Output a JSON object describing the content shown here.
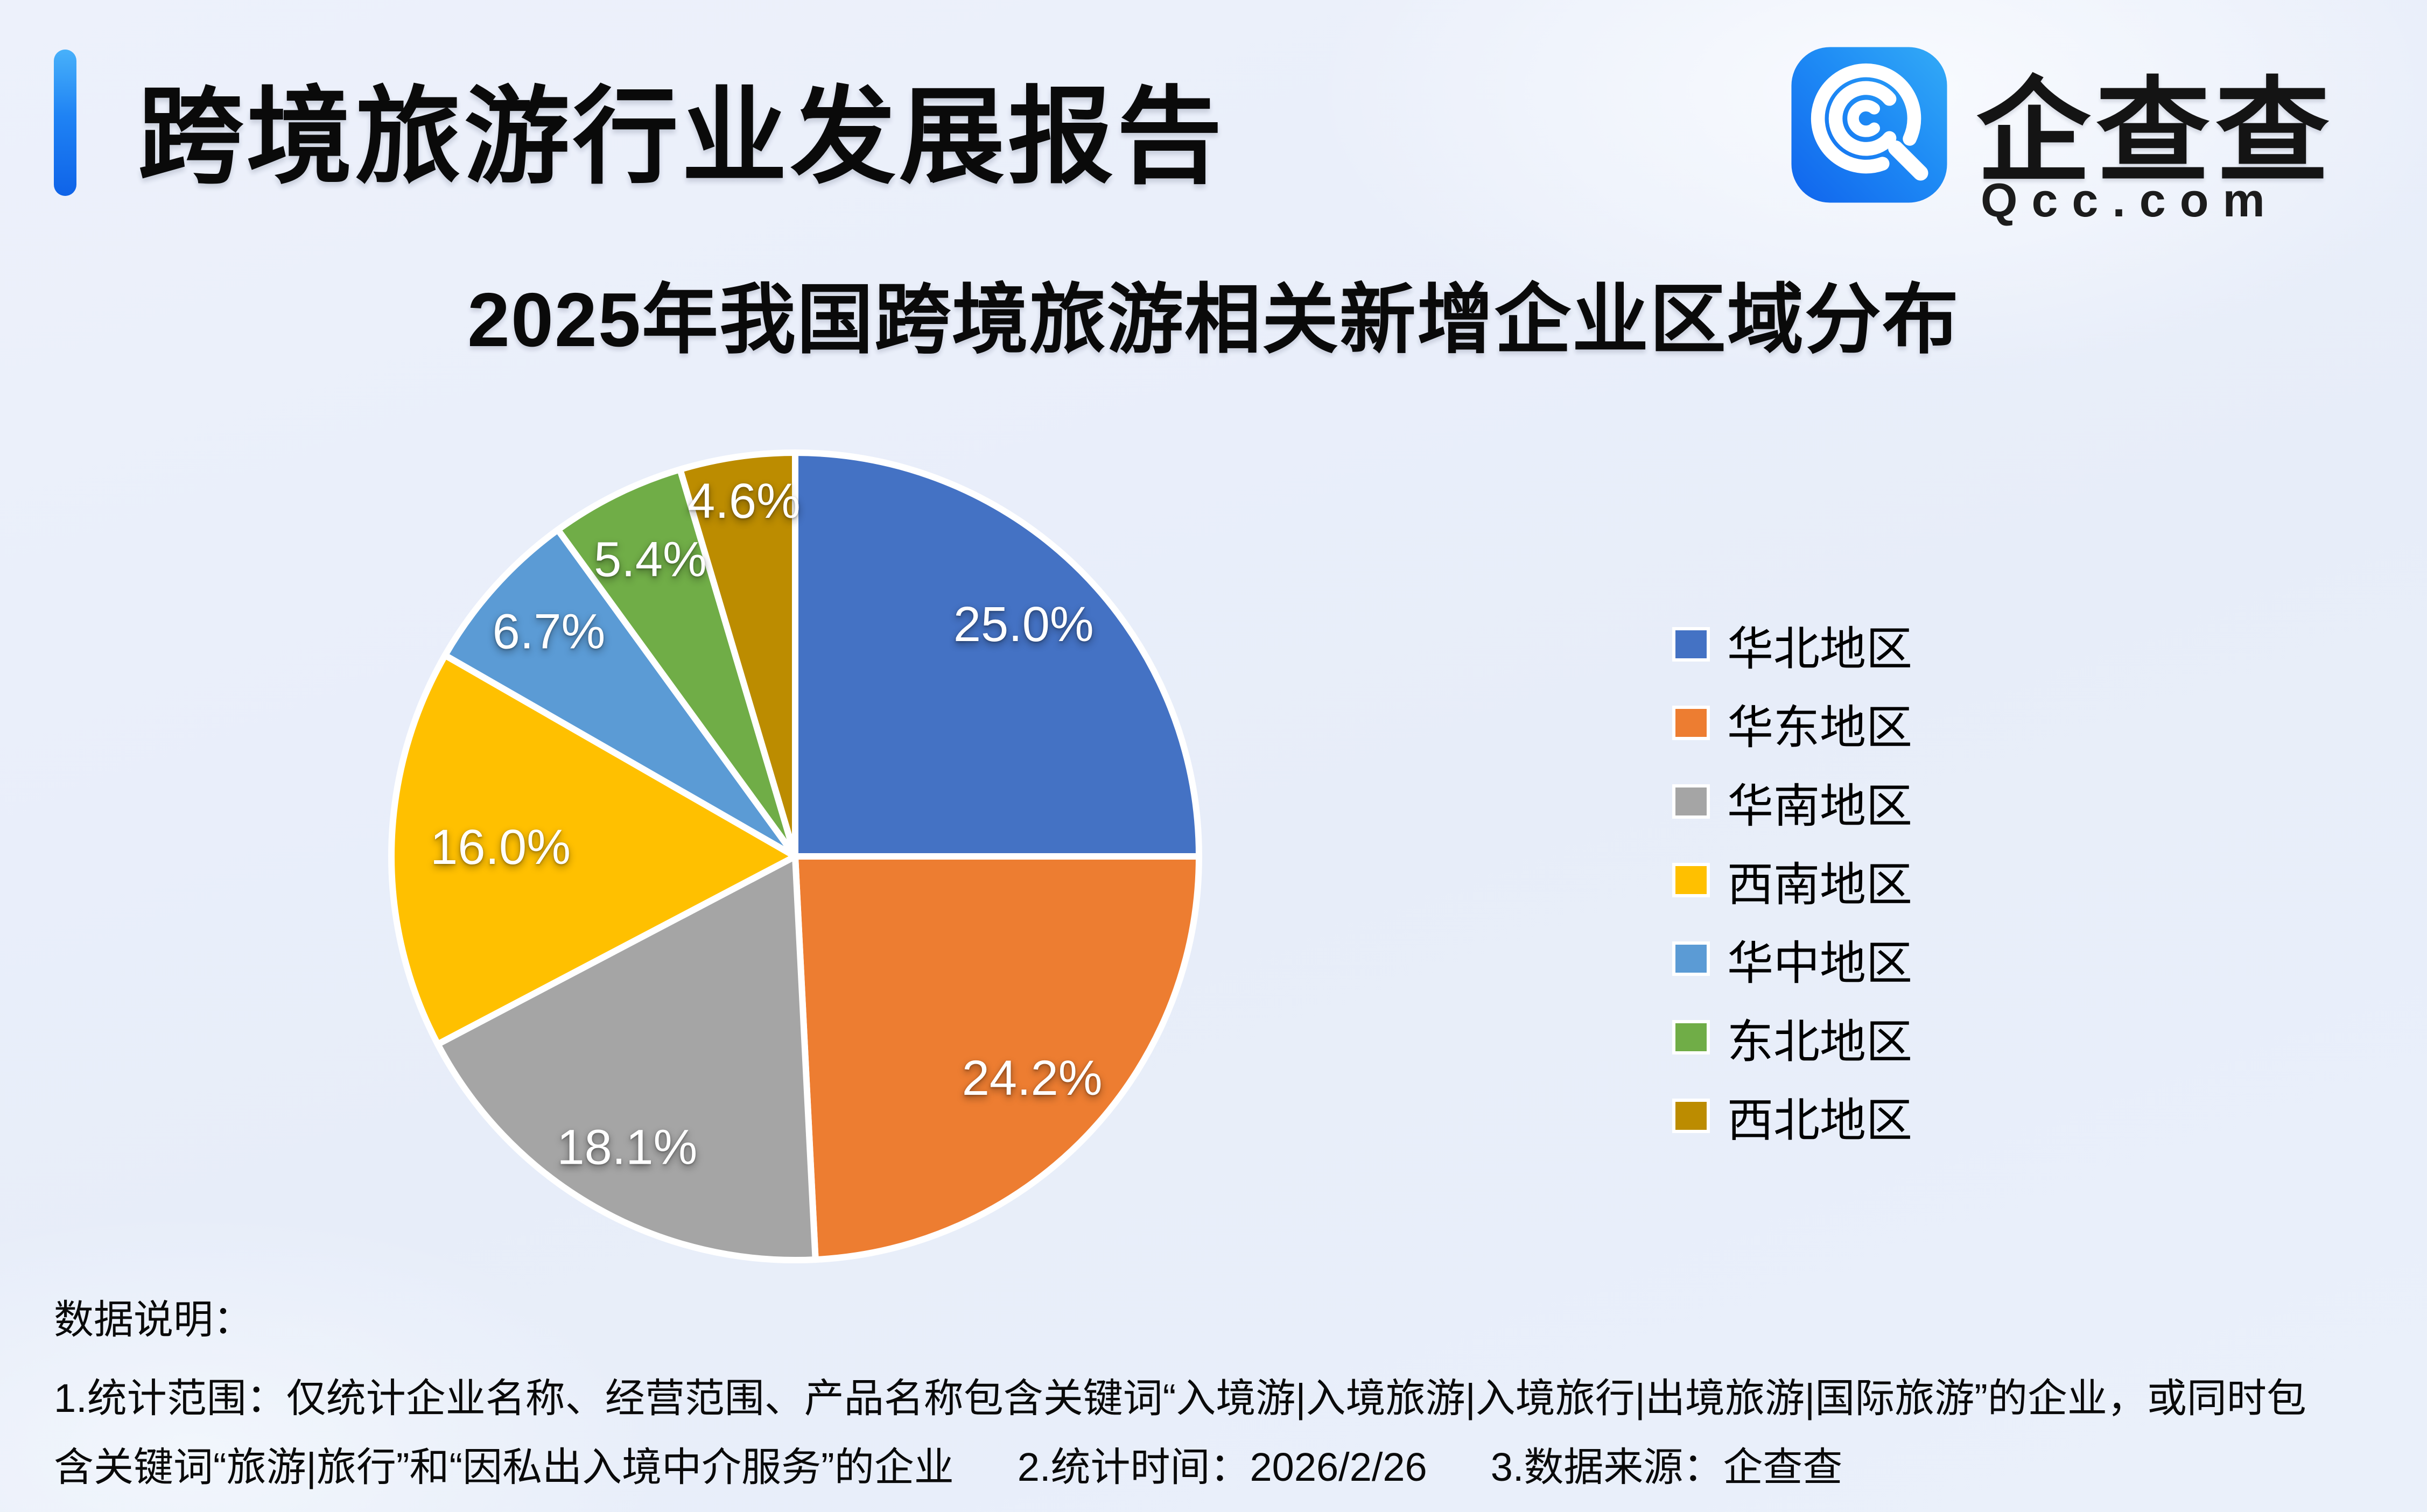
{
  "header": {
    "title": "跨境旅游行业发展报告"
  },
  "logo": {
    "name": "企查查",
    "domain": "Qcc.com"
  },
  "chart_data": {
    "type": "pie",
    "title": "2025年我国跨境旅游相关新增企业区域分布",
    "series": [
      {
        "label": "华北地区",
        "value": 25.0,
        "color": "#4472C4"
      },
      {
        "label": "华东地区",
        "value": 24.2,
        "color": "#ED7D31"
      },
      {
        "label": "华南地区",
        "value": 18.1,
        "color": "#A5A5A5"
      },
      {
        "label": "西南地区",
        "value": 16.0,
        "color": "#FFC000"
      },
      {
        "label": "华中地区",
        "value": 6.7,
        "color": "#5B9BD5"
      },
      {
        "label": "东北地区",
        "value": 5.4,
        "color": "#70AD47"
      },
      {
        "label": "西北地区",
        "value": 4.6,
        "color": "#BC8C00"
      }
    ],
    "label_format": "percent_one_decimal",
    "start_angle_deg": 0,
    "direction": "clockwise",
    "legend_position": "right",
    "label_radius_fraction": [
      0.8,
      0.81,
      0.84,
      0.73,
      0.82,
      0.81,
      0.88
    ],
    "separator_color": "#FFFFFF"
  },
  "notes": {
    "heading": "数据说明：",
    "line1": "1.统计范围：仅统计企业名称、经营范围、产品名称包含关键词“入境游|入境旅游|入境旅行|出境旅游|国际旅游”的企业，或同时包",
    "line2_part1": "含关键词“旅游|旅行”和“因私出入境中介服务”的企业",
    "line2_part2": "2.统计时间：2026/2/26",
    "line2_part3": "3.数据来源：企查查"
  }
}
